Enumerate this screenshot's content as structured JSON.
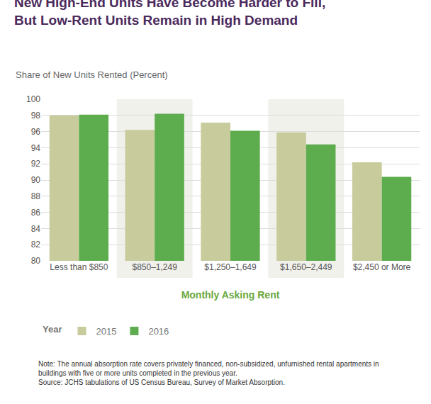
{
  "chart_data": {
    "type": "bar",
    "title": "New High-End Units Have Become Harder to Fill,\nBut Low-Rent Units Remain in High Demand",
    "subtitle": "Share of New Units Rented (Percent)",
    "x_label": "Monthly Asking Rent",
    "legend_title": "Year",
    "categories": [
      "Less than $850",
      "$850–1,249",
      "$1,250–1,649",
      "$1,650–2,449",
      "$2,450 or More"
    ],
    "series": [
      {
        "name": "2015",
        "color": "#c8cb9b",
        "values": [
          98.0,
          96.2,
          97.1,
          95.9,
          92.2
        ]
      },
      {
        "name": "2016",
        "color": "#5dad4e",
        "values": [
          98.1,
          98.2,
          96.1,
          94.4,
          90.4
        ]
      }
    ],
    "ylim": [
      80,
      100
    ],
    "yticks": [
      80,
      82,
      84,
      86,
      88,
      90,
      92,
      94,
      96,
      98,
      100
    ],
    "grid": true,
    "legend": "bottom left",
    "annotations": [
      "Note: The annual absorption rate covers privately financed, non-subsidized, unfurnished rental apartments in",
      "buildings with five or more units completed in the previous year.",
      "Source: JCHS tabulations of US Census Bureau, Survey of Market Absorption."
    ]
  }
}
